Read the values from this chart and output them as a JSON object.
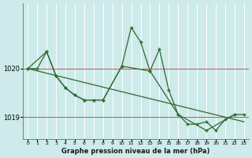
{
  "title": "Graphe pression niveau de la mer (hPa)",
  "background_color": "#ceeaea",
  "grid_color": "#b8d8d8",
  "line_color": "#2d6a2d",
  "xmin": -0.5,
  "xmax": 23.5,
  "ymin": 1018.55,
  "ymax": 1021.35,
  "ytick_vals": [
    1019,
    1020
  ],
  "ytick_labels": [
    "1019",
    "1020"
  ],
  "xticks": [
    0,
    1,
    2,
    3,
    4,
    5,
    6,
    7,
    8,
    9,
    10,
    11,
    12,
    13,
    14,
    15,
    16,
    17,
    18,
    19,
    20,
    21,
    22,
    23
  ],
  "series1_x": [
    0,
    1,
    2,
    3,
    4,
    5,
    6,
    7,
    8,
    10,
    11,
    12,
    13,
    14,
    15,
    16,
    17,
    18,
    19,
    20,
    21,
    22,
    23
  ],
  "series1_y": [
    1020.0,
    1020.0,
    1020.35,
    1019.85,
    1019.6,
    1019.45,
    1019.35,
    1019.35,
    1019.35,
    1020.05,
    1020.85,
    1020.55,
    1019.95,
    1020.4,
    1019.55,
    1019.05,
    1018.85,
    1018.85,
    1018.9,
    1018.72,
    1018.95,
    1019.05,
    1019.05
  ],
  "series2_x": [
    0,
    2,
    3,
    4,
    5,
    6,
    7,
    8,
    10,
    13,
    16,
    19,
    22
  ],
  "series2_y": [
    1020.0,
    1020.35,
    1019.85,
    1019.6,
    1019.45,
    1019.35,
    1019.35,
    1019.35,
    1020.05,
    1019.95,
    1019.05,
    1018.72,
    1019.05
  ],
  "series3_x": [
    0,
    23
  ],
  "series3_y": [
    1020.0,
    1018.9
  ]
}
